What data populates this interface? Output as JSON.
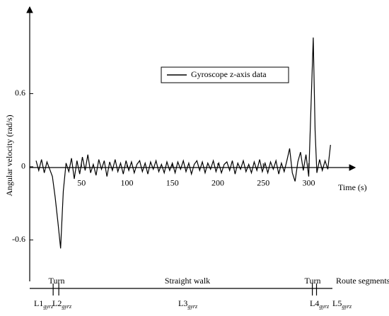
{
  "chart_data": {
    "type": "line",
    "x_label": "Time (s)",
    "y_label": "Angular velocity (rad/s)",
    "legend_position": "upper center",
    "x": [
      0,
      3,
      6,
      9,
      12,
      15,
      18,
      21,
      24,
      27,
      30,
      33,
      36,
      39,
      42,
      45,
      48,
      51,
      54,
      57,
      60,
      63,
      66,
      69,
      72,
      75,
      78,
      81,
      84,
      87,
      90,
      93,
      96,
      99,
      102,
      105,
      108,
      111,
      114,
      117,
      120,
      123,
      126,
      129,
      132,
      135,
      138,
      141,
      144,
      147,
      150,
      153,
      156,
      159,
      162,
      165,
      168,
      171,
      174,
      177,
      180,
      183,
      186,
      189,
      192,
      195,
      198,
      201,
      204,
      207,
      210,
      213,
      216,
      219,
      222,
      225,
      228,
      231,
      234,
      237,
      240,
      243,
      246,
      249,
      252,
      255,
      258,
      261,
      264,
      267,
      270,
      273,
      276,
      279,
      282,
      285,
      288,
      291,
      294,
      297,
      300,
      303,
      305,
      307,
      309,
      312,
      315,
      318,
      321,
      324
    ],
    "series": [
      {
        "name": "Gyroscope z-axis data",
        "color": "#000000",
        "values": [
          0.05,
          -0.03,
          0.06,
          -0.05,
          0.04,
          -0.02,
          -0.08,
          -0.25,
          -0.45,
          -0.67,
          -0.2,
          0.03,
          -0.04,
          0.07,
          -0.1,
          0.05,
          -0.06,
          0.08,
          -0.03,
          0.1,
          -0.05,
          0.02,
          -0.07,
          0.06,
          -0.02,
          0.05,
          -0.08,
          0.04,
          -0.03,
          0.06,
          -0.04,
          0.03,
          -0.06,
          0.05,
          -0.03,
          0.04,
          -0.05,
          0.02,
          0.05,
          -0.04,
          0.03,
          -0.06,
          0.04,
          -0.02,
          0.05,
          -0.04,
          0.02,
          -0.05,
          0.04,
          -0.03,
          0.03,
          -0.05,
          0.04,
          -0.02,
          0.05,
          -0.04,
          0.03,
          -0.06,
          0.02,
          0.05,
          -0.03,
          0.04,
          -0.05,
          0.03,
          -0.02,
          0.05,
          -0.04,
          0.03,
          -0.05,
          0.02,
          0.04,
          -0.03,
          0.05,
          -0.06,
          0.03,
          -0.02,
          0.05,
          -0.04,
          0.02,
          -0.05,
          0.04,
          -0.03,
          0.06,
          -0.04,
          0.03,
          -0.05,
          0.04,
          -0.02,
          0.05,
          -0.06,
          0.03,
          -0.04,
          0.05,
          0.15,
          -0.05,
          -0.12,
          0.04,
          0.12,
          -0.03,
          0.1,
          -0.08,
          0.6,
          1.06,
          0.3,
          -0.05,
          0.06,
          -0.03,
          0.05,
          -0.02,
          0.18
        ]
      }
    ],
    "xlim": [
      -7,
      351
    ],
    "ylim": [
      -0.94,
      1.31
    ],
    "xticks": [
      50,
      100,
      150,
      200,
      250,
      300
    ],
    "yticks": [
      -0.6,
      0,
      0.6
    ],
    "route": {
      "label": "Route segments",
      "annotations": [
        "Turn",
        "Straight walk",
        "Turn"
      ],
      "boundaries": [
        18.8,
        25,
        304,
        308.6
      ],
      "segments": [
        {
          "main": "L1",
          "sub": "gyrz"
        },
        {
          "main": "L2",
          "sub": "gyrz"
        },
        {
          "main": "L3",
          "sub": "gyrz"
        },
        {
          "main": "L4",
          "sub": "gyrz"
        },
        {
          "main": "L5",
          "sub": "gyrz"
        }
      ]
    }
  }
}
